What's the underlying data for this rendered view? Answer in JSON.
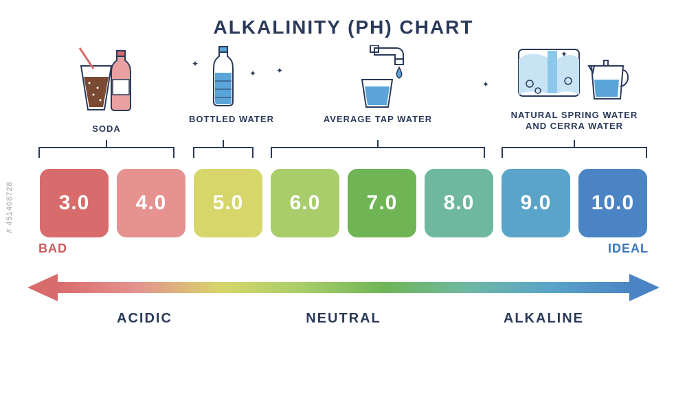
{
  "title": "ALKALINITY (PH) CHART",
  "side_stock_id": "# 451408728",
  "categories": {
    "soda": {
      "label": "SODA",
      "span_start": 0,
      "span_end": 1
    },
    "bottled": {
      "label": "BOTTLED WATER",
      "span_start": 2,
      "span_end": 2
    },
    "tap": {
      "label": "AVERAGE TAP WATER",
      "span_start": 2,
      "span_end": 4
    },
    "spring": {
      "label": "NATURAL SPRING WATER\nAND CERRA WATER",
      "span_start": 6,
      "span_end": 7
    }
  },
  "tiles": [
    {
      "value": "3.0",
      "color": "#d86b6b"
    },
    {
      "value": "4.0",
      "color": "#e59290"
    },
    {
      "value": "5.0",
      "color": "#d6d66a"
    },
    {
      "value": "6.0",
      "color": "#a8cd6a"
    },
    {
      "value": "7.0",
      "color": "#6fb556"
    },
    {
      "value": "8.0",
      "color": "#6fb8a0"
    },
    {
      "value": "9.0",
      "color": "#5aa4c9"
    },
    {
      "value": "10.0",
      "color": "#4a84c4"
    }
  ],
  "endcaps": {
    "left": {
      "text": "BAD",
      "color": "#cc5a5a"
    },
    "right": {
      "text": "IDEAL",
      "color": "#3a76b8"
    }
  },
  "arrow": {
    "gradient": [
      "#d86b6b",
      "#e59290",
      "#d6d66a",
      "#a8cd6a",
      "#6fb556",
      "#6fb8a0",
      "#5aa4c9",
      "#4a84c4"
    ],
    "head_left_color": "#d86b6b",
    "head_right_color": "#4a84c4"
  },
  "axis": {
    "left": "ACIDIC",
    "center": "NEUTRAL",
    "right": "ALKALINE"
  },
  "icon_stroke": "#2a3a5a",
  "icon_fill_blue": "#5aa4d8"
}
